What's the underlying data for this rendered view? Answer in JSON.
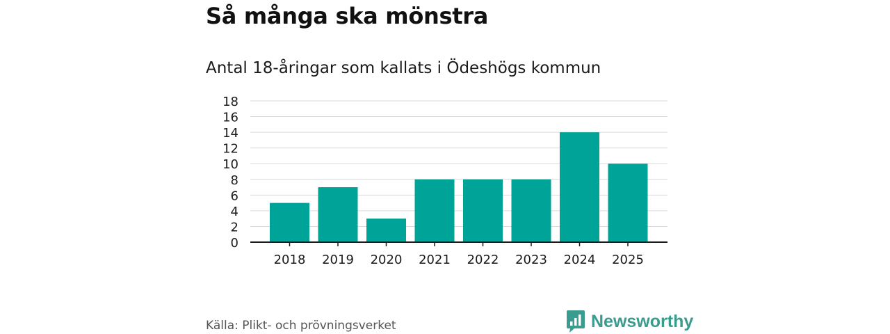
{
  "header": {
    "title": "Så många ska mönstra",
    "subtitle": "Antal 18-åringar som kallats i Ödeshögs kommun"
  },
  "footer": {
    "source": "Källa: Plikt- och prövningsverket",
    "brand": "Newsworthy",
    "brand_icon": "bar-chart-bubble-icon"
  },
  "colors": {
    "bar": "#00a398",
    "brand": "#3a9b8f",
    "grid": "#d9d9d9",
    "axis": "#1a1a1a"
  },
  "chart_data": {
    "type": "bar",
    "title": "Så många ska mönstra",
    "subtitle": "Antal 18-åringar som kallats i Ödeshögs kommun",
    "xlabel": "",
    "ylabel": "",
    "categories": [
      "2018",
      "2019",
      "2020",
      "2021",
      "2022",
      "2023",
      "2024",
      "2025"
    ],
    "values": [
      5,
      7,
      3,
      8,
      8,
      8,
      14,
      10
    ],
    "ylim": [
      0,
      18
    ],
    "yticks": [
      "0",
      "2",
      "4",
      "6",
      "8",
      "10",
      "12",
      "14",
      "16",
      "18"
    ],
    "grid": true,
    "legend": "none"
  }
}
